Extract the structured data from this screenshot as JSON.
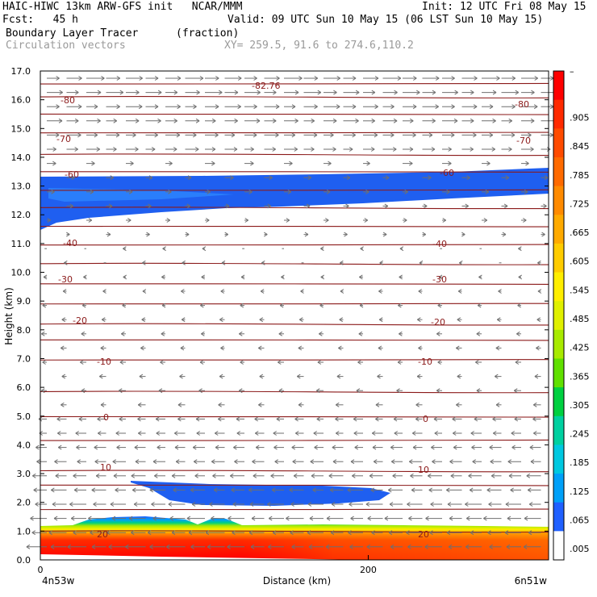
{
  "header": {
    "model": "HAIC-HIWC 13km ARW-GFS init   NCAR/MMM",
    "init": "Init: 12 UTC Fri 08 May 15",
    "fcst": "Fcst:   45 h",
    "valid": "Valid: 09 UTC Sun 10 May 15 (06 LST Sun 10 May 15)",
    "field": "Boundary Layer Tracer",
    "units": "(fraction)",
    "vectors": "Circulation vectors",
    "xy": "XY= 259.5, 91.6 to 274.6,110.2"
  },
  "chart_data": {
    "type": "heatmap",
    "xlabel": "Distance (km)",
    "ylabel": "Height (km)",
    "xlim": [
      0,
      310
    ],
    "ylim": [
      0,
      17
    ],
    "x_ticks": [
      0,
      200
    ],
    "x_tick_labels": [
      "0",
      "200"
    ],
    "x_end_labels": [
      "4n53w",
      "6n51w"
    ],
    "y_ticks": [
      0,
      1,
      2,
      3,
      4,
      5,
      6,
      7,
      8,
      9,
      10,
      11,
      12,
      13,
      14,
      15,
      16,
      17
    ],
    "y_tick_labels": [
      "0.0",
      "1.0",
      "2.0",
      "3.0",
      "4.0",
      "5.0",
      "6.0",
      "7.0",
      "8.0",
      "9.0",
      "10.0",
      "11.0",
      "12.0",
      "13.0",
      "14.0",
      "15.0",
      "16.0",
      "17.0"
    ],
    "colorbar": {
      "labels": [
        "–",
        ".905",
        ".845",
        ".785",
        ".725",
        ".665",
        ".605",
        ".545",
        ".485",
        ".425",
        ".365",
        ".305",
        ".245",
        ".185",
        ".125",
        ".065",
        ".005"
      ],
      "colors": [
        "#ff0000",
        "#ff2a00",
        "#ff4b00",
        "#ff6a00",
        "#ff8a00",
        "#ffaa00",
        "#ffcc00",
        "#ffee00",
        "#e0f000",
        "#a8ea00",
        "#60e000",
        "#00d040",
        "#00d0a0",
        "#00c8e0",
        "#00a0f8",
        "#2060ff",
        "#ffffff"
      ]
    },
    "tracer_layers": [
      {
        "name": "boundary layer",
        "level": 0.9
      },
      {
        "name": "upper layer 12-13.6 km",
        "level": 0.06
      },
      {
        "name": "mid layer 1.8-2.8 km",
        "level": 0.06
      }
    ],
    "isotherms": [
      {
        "label": "-82.76",
        "value": -82.76
      },
      {
        "label": "-80",
        "value": -80
      },
      {
        "label": "-70",
        "value": -70
      },
      {
        "label": "-60",
        "value": -60
      },
      {
        "label": "-40",
        "value": -40
      },
      {
        "label": "-30",
        "value": -30
      },
      {
        "label": "-20",
        "value": -20
      },
      {
        "label": "-10",
        "value": -10
      },
      {
        "label": "0",
        "value": 0
      },
      {
        "label": "10",
        "value": 10
      },
      {
        "label": "20",
        "value": 20
      }
    ]
  }
}
